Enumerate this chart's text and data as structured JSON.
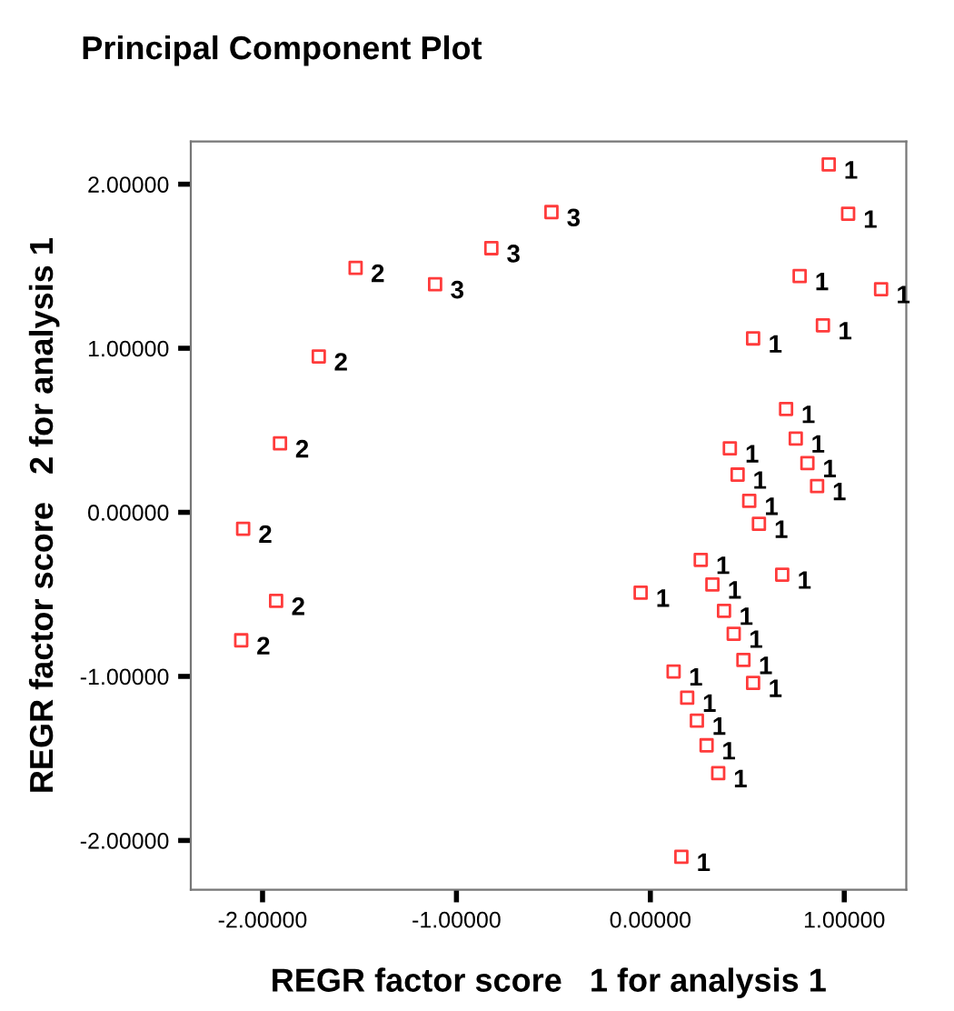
{
  "chart_data": {
    "type": "scatter",
    "title": "Principal Component Plot",
    "xlabel": "REGR factor score   1 for analysis 1",
    "ylabel": "REGR factor score   2 for analysis 1",
    "series": [
      {
        "color": "#ff3b3b",
        "x": [
          -0.51,
          -0.82,
          -1.11,
          -1.52,
          -1.71,
          -1.91,
          -2.1,
          -1.93,
          -2.11,
          0.92,
          1.02,
          0.77,
          1.19,
          0.89,
          0.53,
          0.7,
          0.75,
          0.41,
          0.81,
          0.45,
          0.86,
          0.51,
          0.56,
          0.26,
          0.68,
          0.32,
          -0.05,
          0.38,
          0.43,
          0.48,
          0.12,
          0.53,
          0.19,
          0.24,
          0.29,
          0.35,
          0.16
        ],
        "values": [
          1.83,
          1.61,
          1.39,
          1.49,
          0.95,
          0.42,
          -0.1,
          -0.54,
          -0.78,
          2.12,
          1.82,
          1.44,
          1.36,
          1.14,
          1.06,
          0.63,
          0.45,
          0.39,
          0.3,
          0.23,
          0.16,
          0.07,
          -0.07,
          -0.29,
          -0.38,
          -0.44,
          -0.49,
          -0.6,
          -0.74,
          -0.9,
          -0.97,
          -1.04,
          -1.13,
          -1.27,
          -1.42,
          -1.59,
          -2.1
        ]
      }
    ],
    "annotations": [
      {
        "text": "3",
        "x": -0.51,
        "y": 1.83
      },
      {
        "text": "3",
        "x": -0.82,
        "y": 1.61
      },
      {
        "text": "3",
        "x": -1.11,
        "y": 1.39
      },
      {
        "text": "2",
        "x": -1.52,
        "y": 1.49
      },
      {
        "text": "2",
        "x": -1.71,
        "y": 0.95
      },
      {
        "text": "2",
        "x": -1.91,
        "y": 0.42
      },
      {
        "text": "2",
        "x": -2.1,
        "y": -0.1
      },
      {
        "text": "2",
        "x": -1.93,
        "y": -0.54
      },
      {
        "text": "2",
        "x": -2.11,
        "y": -0.78
      },
      {
        "text": "1",
        "x": 0.92,
        "y": 2.12
      },
      {
        "text": "1",
        "x": 1.02,
        "y": 1.82
      },
      {
        "text": "1",
        "x": 0.77,
        "y": 1.44
      },
      {
        "text": "1",
        "x": 1.19,
        "y": 1.36
      },
      {
        "text": "1",
        "x": 0.89,
        "y": 1.14
      },
      {
        "text": "1",
        "x": 0.53,
        "y": 1.06
      },
      {
        "text": "1",
        "x": 0.7,
        "y": 0.63
      },
      {
        "text": "1",
        "x": 0.75,
        "y": 0.45
      },
      {
        "text": "1",
        "x": 0.41,
        "y": 0.39
      },
      {
        "text": "1",
        "x": 0.81,
        "y": 0.3
      },
      {
        "text": "1",
        "x": 0.45,
        "y": 0.23
      },
      {
        "text": "1",
        "x": 0.86,
        "y": 0.16
      },
      {
        "text": "1",
        "x": 0.51,
        "y": 0.07
      },
      {
        "text": "1",
        "x": 0.56,
        "y": -0.07
      },
      {
        "text": "1",
        "x": 0.26,
        "y": -0.29
      },
      {
        "text": "1",
        "x": 0.68,
        "y": -0.38
      },
      {
        "text": "1",
        "x": 0.32,
        "y": -0.44
      },
      {
        "text": "1",
        "x": -0.05,
        "y": -0.49
      },
      {
        "text": "1",
        "x": 0.38,
        "y": -0.6
      },
      {
        "text": "1",
        "x": 0.43,
        "y": -0.74
      },
      {
        "text": "1",
        "x": 0.48,
        "y": -0.9
      },
      {
        "text": "1",
        "x": 0.12,
        "y": -0.97
      },
      {
        "text": "1",
        "x": 0.53,
        "y": -1.04
      },
      {
        "text": "1",
        "x": 0.19,
        "y": -1.13
      },
      {
        "text": "1",
        "x": 0.24,
        "y": -1.27
      },
      {
        "text": "1",
        "x": 0.29,
        "y": -1.42
      },
      {
        "text": "1",
        "x": 0.35,
        "y": -1.59
      },
      {
        "text": "1",
        "x": 0.16,
        "y": -2.1
      }
    ],
    "xlim": [
      -2.37,
      1.32
    ],
    "ylim": [
      -2.3,
      2.26
    ],
    "xticks": [
      {
        "value": -2,
        "label": "-2.00000"
      },
      {
        "value": -1,
        "label": "-1.00000"
      },
      {
        "value": 0,
        "label": "0.00000"
      },
      {
        "value": 1,
        "label": "1.00000"
      }
    ],
    "yticks": [
      {
        "value": -2,
        "label": "-2.00000"
      },
      {
        "value": -1,
        "label": "-1.00000"
      },
      {
        "value": 0,
        "label": "0.00000"
      },
      {
        "value": 1,
        "label": "1.00000"
      },
      {
        "value": 2,
        "label": "2.00000"
      }
    ],
    "marker": "square",
    "grid": false,
    "legend": false
  }
}
